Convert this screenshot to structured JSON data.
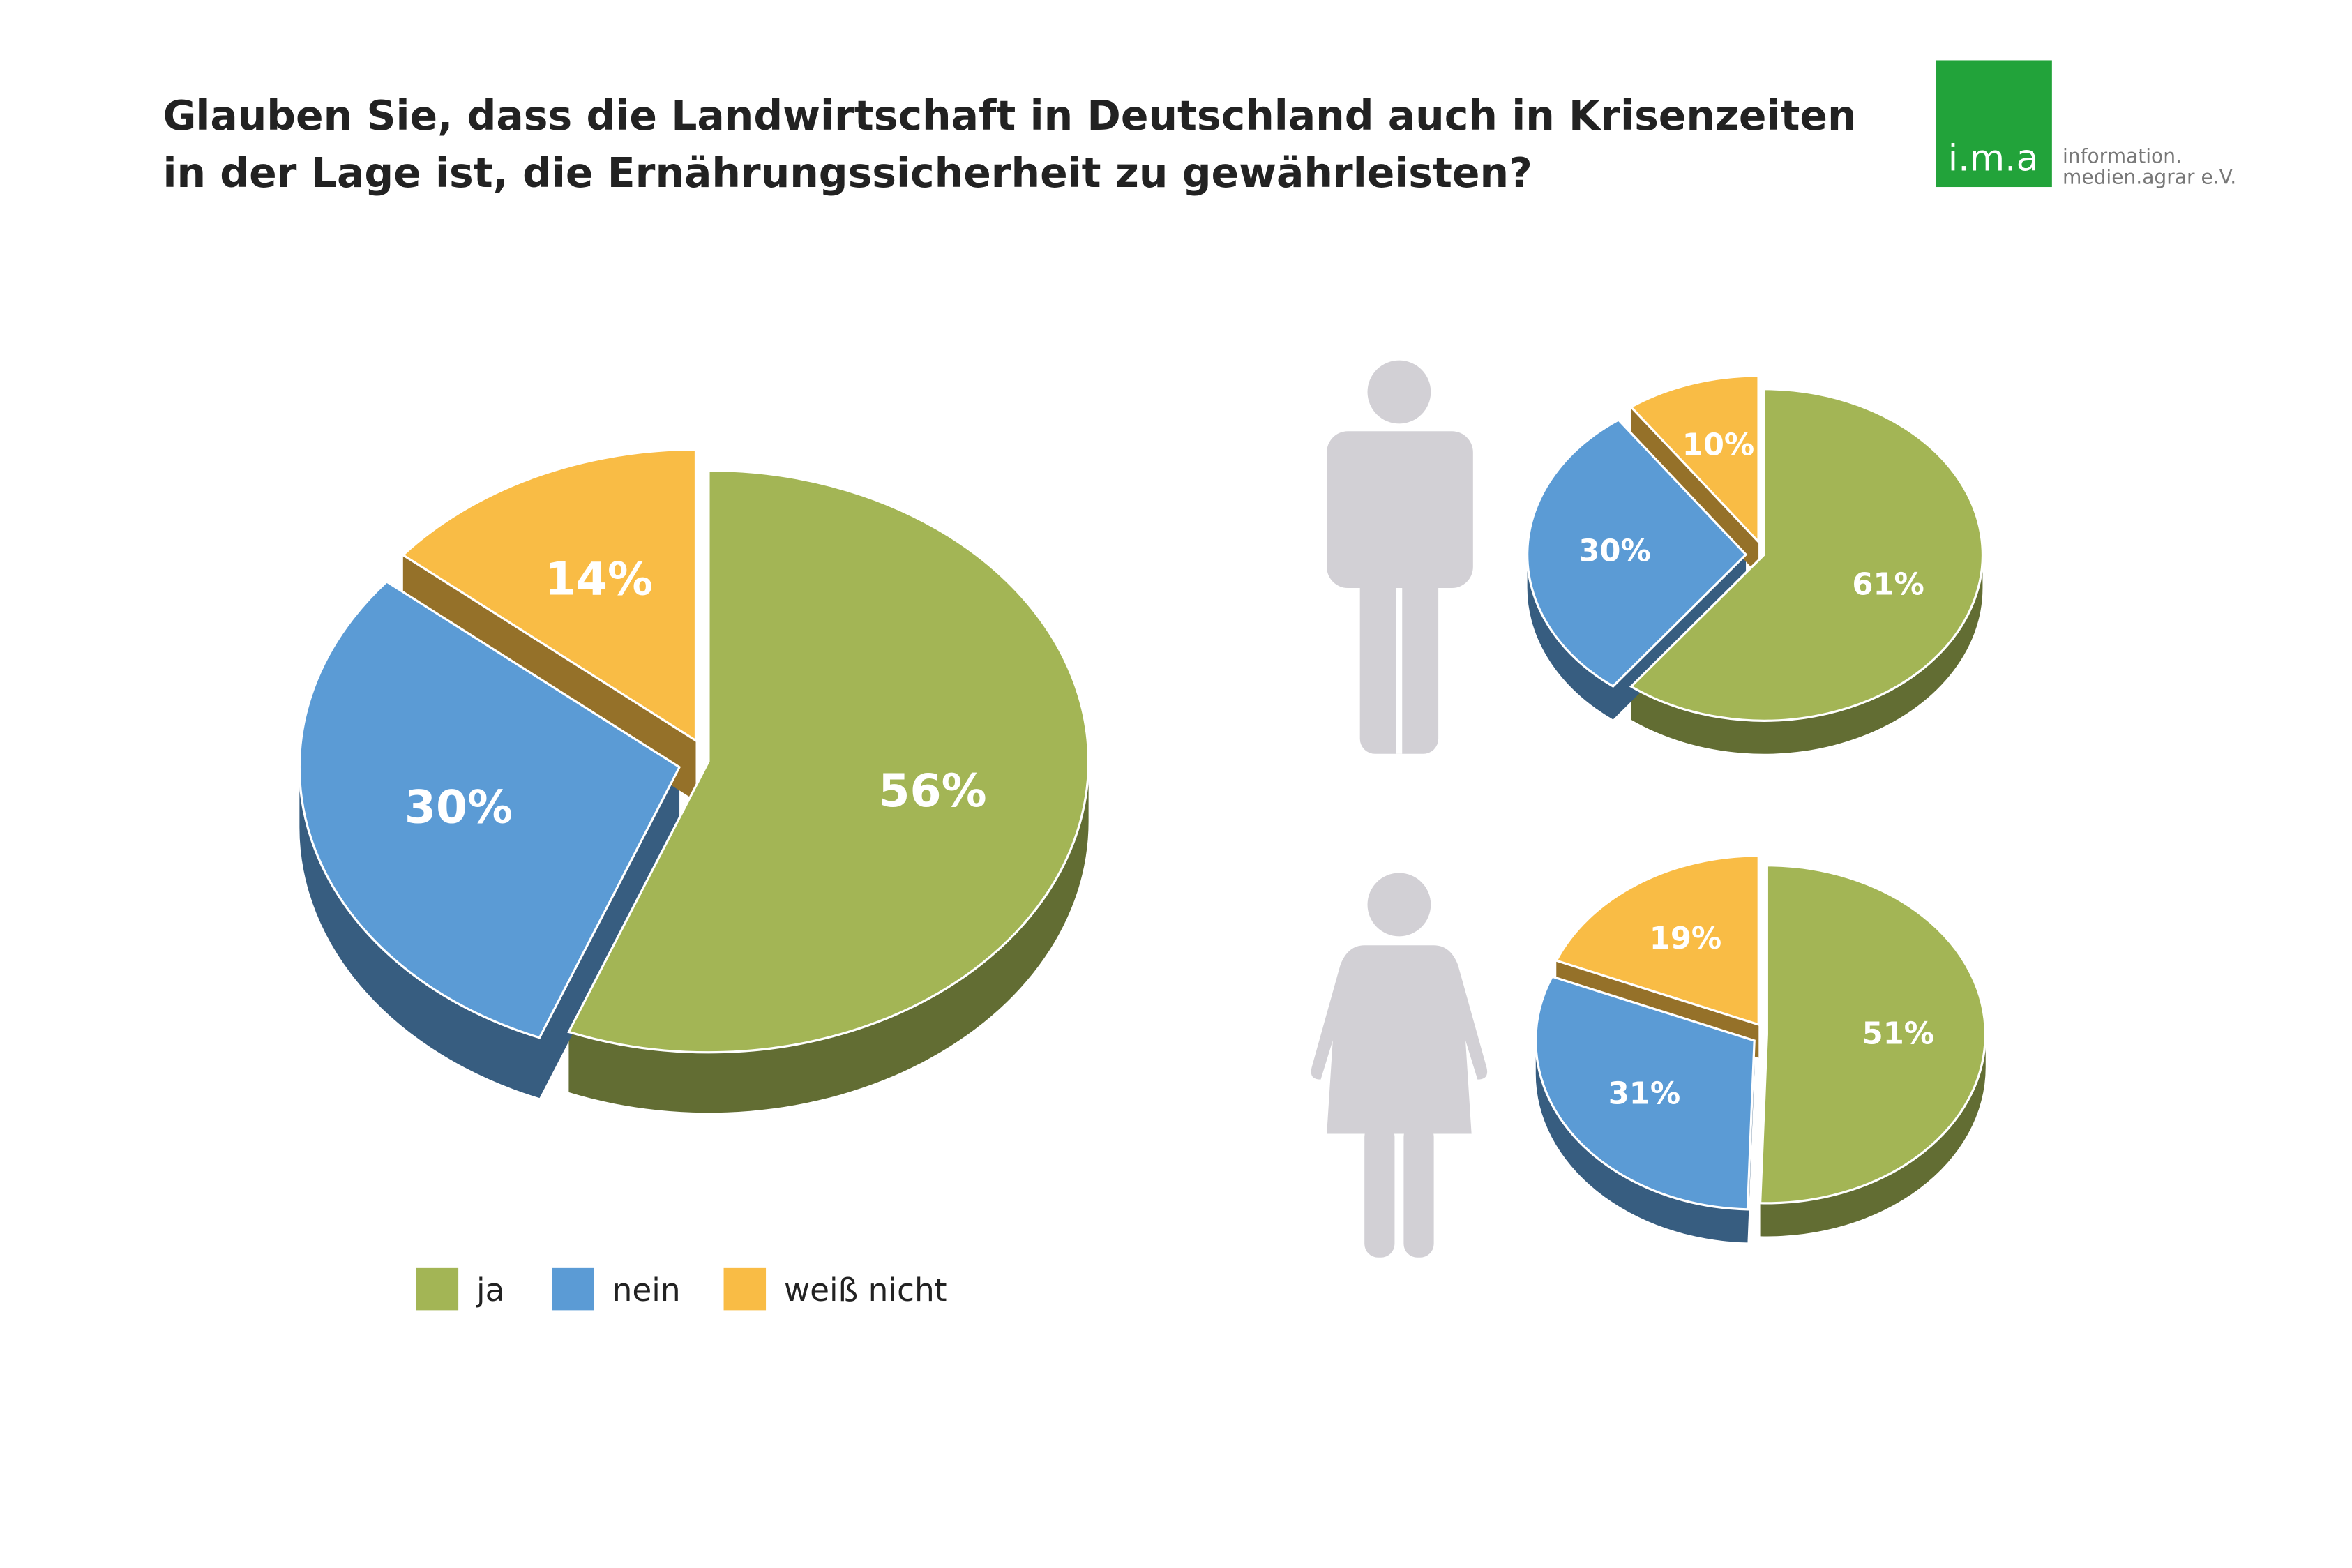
{
  "title": [
    "Glauben Sie, dass die Landwirtschaft in Deutschland auch in Krisenzeiten",
    "in der Lage ist, die Ernährungssicherheit zu gewährleisten?"
  ],
  "logo": {
    "mark": "i.m.a",
    "line1": "information.",
    "line2": "medien.agrar e.V."
  },
  "chart_data": [
    {
      "type": "pie",
      "categories": [
        "ja",
        "nein",
        "weiß nicht"
      ],
      "colors": [
        "#a3b555",
        "#5b9bd5",
        "#f9bc45"
      ],
      "values": [
        56,
        30,
        14
      ],
      "value_labels": [
        "56%",
        "30%",
        "14%"
      ]
    },
    {
      "type": "pie",
      "colors": [
        "#a3b555",
        "#5b9bd5",
        "#f9bc45"
      ],
      "values": [
        61,
        30,
        10
      ],
      "value_labels": [
        "61%",
        "30%",
        "10%"
      ]
    },
    {
      "type": "pie",
      "colors": [
        "#a3b555",
        "#5b9bd5",
        "#f9bc45"
      ],
      "values": [
        51,
        31,
        19
      ],
      "value_labels": [
        "51%",
        "31%",
        "19%"
      ]
    }
  ]
}
